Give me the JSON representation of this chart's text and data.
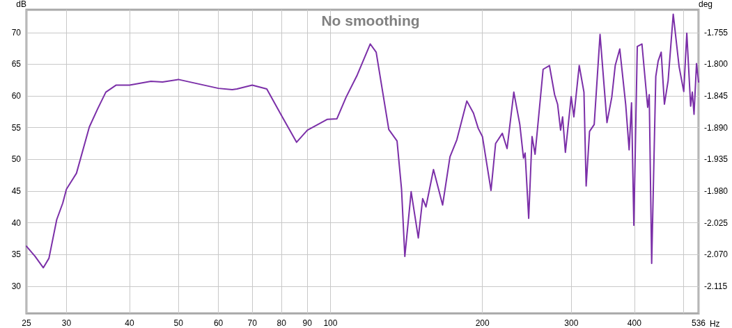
{
  "chart_data": {
    "type": "line",
    "title": "No smoothing",
    "xlabel": "Hz",
    "ylabel": "dB",
    "y2label": "deg",
    "log": "x",
    "grid": true,
    "xlim": [
      25,
      536
    ],
    "xticks": [
      25,
      30,
      40,
      50,
      60,
      70,
      80,
      90,
      100,
      200,
      300,
      400,
      {
        "value": 500,
        "label": null
      },
      536
    ],
    "ylim": [
      25.7,
      73.6
    ],
    "yticks": [
      30,
      35,
      40,
      45,
      50,
      55,
      60,
      65,
      70
    ],
    "y2lim": [
      -2.1537,
      -1.7226
    ],
    "y2ticks": [
      {
        "value": -2.115,
        "label": "-2.115"
      },
      {
        "value": -2.07,
        "label": "-2.070"
      },
      {
        "value": -2.025,
        "label": "-2.025"
      },
      {
        "value": -1.98,
        "label": "-1.980"
      },
      {
        "value": -1.935,
        "label": "-1.935"
      },
      {
        "value": -1.89,
        "label": "-1.890"
      },
      {
        "value": -1.845,
        "label": "-1.845"
      },
      {
        "value": -1.8,
        "label": "-1.800"
      },
      {
        "value": -1.755,
        "label": "-1.755"
      }
    ],
    "series": [
      {
        "color": "#7b2fa8",
        "x": [
          25,
          26,
          27,
          27.7,
          28.7,
          29.5,
          30,
          31.4,
          33.3,
          34.6,
          35.9,
          37.6,
          40,
          44.1,
          46.5,
          50,
          60,
          63.9,
          65.3,
          70,
          74.8,
          80,
          85.7,
          90,
          98.5,
          103,
          107.4,
          113,
          119.9,
          123.2,
          130.5,
          135.5,
          138.3,
          140.4,
          144.5,
          149.3,
          152.3,
          154.6,
          160,
          166.8,
          172.5,
          178,
          186.3,
          192,
          196.2,
          200,
          208,
          212.4,
          219,
          223.8,
          230.8,
          237.2,
          241.2,
          243,
          247,
          250.8,
          254.3,
          263.8,
          271.5,
          278,
          281.8,
          285.7,
          288.3,
          292,
          299.8,
          303.5,
          311,
          317.8,
          321,
          326,
          333,
          342,
          353,
          360.8,
          366.5,
          374.2,
          384.5,
          390.5,
          394.8,
          399,
          405.3,
          414,
          425,
          428,
          432.8,
          441,
          445.8,
          452,
          458.7,
          466.5,
          477.5,
          490.5,
          501,
          508,
          517,
          521,
          525,
          531,
          536
        ],
        "values": [
          36.3,
          34.7,
          32.9,
          34.4,
          40.5,
          43.1,
          45.3,
          47.8,
          55.1,
          58.0,
          60.6,
          61.7,
          61.7,
          62.3,
          62.2,
          62.6,
          61.2,
          61.0,
          61.1,
          61.7,
          61.1,
          56.9,
          52.7,
          54.6,
          56.3,
          56.4,
          59.8,
          63.3,
          68.2,
          66.9,
          54.7,
          52.9,
          45.3,
          34.7,
          44.9,
          37.6,
          43.8,
          42.5,
          48.4,
          42.8,
          50.4,
          53.1,
          59.2,
          57.3,
          54.9,
          53.6,
          45.1,
          52.5,
          54.1,
          51.7,
          60.6,
          55.5,
          50.2,
          51.0,
          40.7,
          53.6,
          50.8,
          64.2,
          64.8,
          60.2,
          58.7,
          54.6,
          56.7,
          51.1,
          59.9,
          56.7,
          64.8,
          60.6,
          45.8,
          54.4,
          55.5,
          69.7,
          55.8,
          59.8,
          64.8,
          67.4,
          58.6,
          51.5,
          58.9,
          39.6,
          67.8,
          68.2,
          58.2,
          60.2,
          33.6,
          63.1,
          65.5,
          66.9,
          58.7,
          62.4,
          72.9,
          64.6,
          60.7,
          69.9,
          58.4,
          60.6,
          57.1,
          65.1,
          62.2
        ]
      }
    ]
  }
}
